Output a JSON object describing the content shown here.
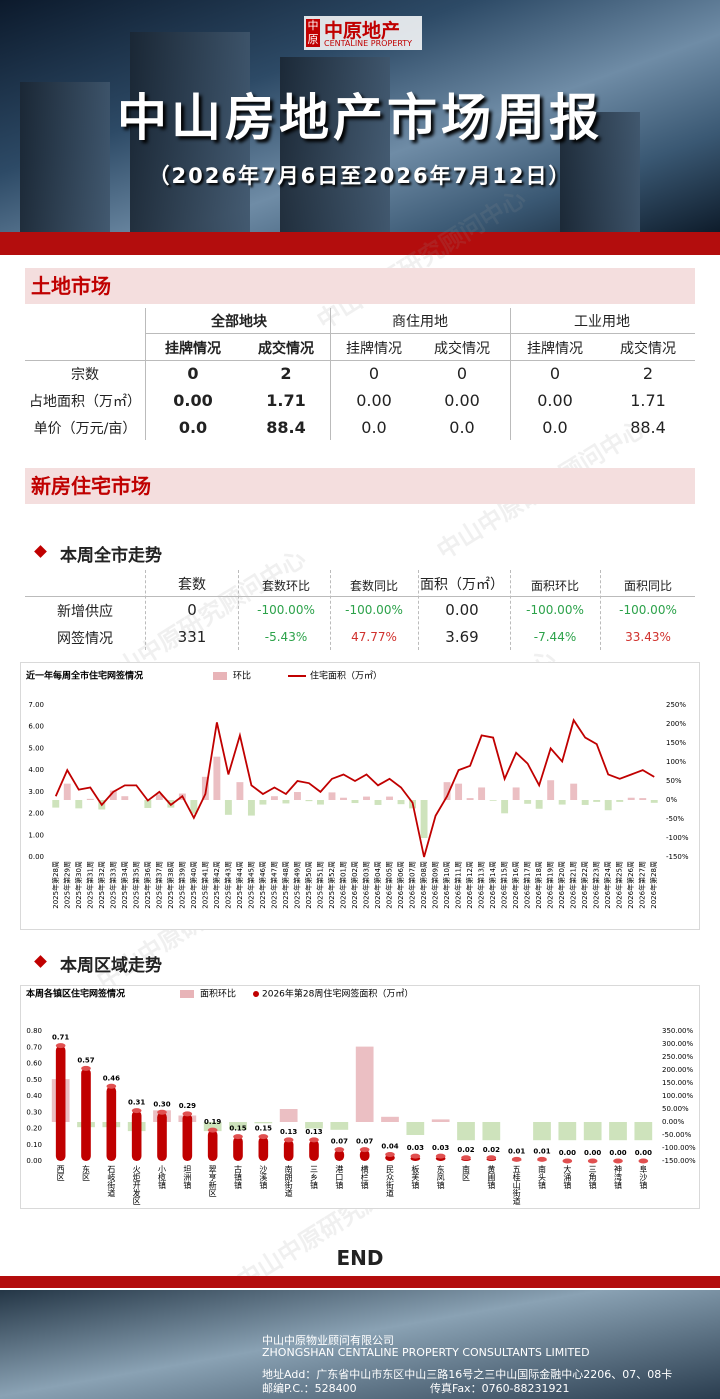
{
  "header": {
    "logo": "中原地产",
    "logo_en": "CENTALINE PROPERTY",
    "logo_mark": "中原",
    "title": "中山房地产市场周报",
    "subtitle": "（2026年7月6日至2026年7月12日）"
  },
  "watermark": "中山中原研究顾问中心",
  "land_market": {
    "title": "土地市场",
    "groups": [
      "全部地块",
      "商住用地",
      "工业用地"
    ],
    "subheaders": [
      "挂牌情况",
      "成交情况",
      "挂牌情况",
      "成交情况",
      "挂牌情况",
      "成交情况"
    ],
    "rows": [
      {
        "label": "宗数",
        "cells": [
          "0",
          "2",
          "0",
          "0",
          "0",
          "2"
        ]
      },
      {
        "label": "占地面积（万㎡）",
        "cells": [
          "0.00",
          "1.71",
          "0.00",
          "0.00",
          "0.00",
          "1.71"
        ]
      },
      {
        "label": "单价（万元/亩）",
        "cells": [
          "0.0",
          "88.4",
          "0.0",
          "0.0",
          "0.0",
          "88.4"
        ]
      }
    ]
  },
  "new_home": {
    "title": "新房住宅市场",
    "city_section": "本周全市走势",
    "district_section": "本周区域走势",
    "headers": [
      "套数",
      "套数环比",
      "套数同比",
      "面积（万㎡）",
      "面积环比",
      "面积同比"
    ],
    "rows": [
      {
        "label": "新增供应",
        "cells": [
          "0",
          "-100.00%",
          "-100.00%",
          "0.00",
          "-100.00%",
          "-100.00%"
        ]
      },
      {
        "label": "网签情况",
        "cells": [
          "331",
          "-5.43%",
          "47.77%",
          "3.69",
          "-7.44%",
          "33.43%"
        ]
      }
    ]
  },
  "chart_data": [
    {
      "type": "combo",
      "title": "近一年每周全市住宅网签情况",
      "categories": [
        "2025年第28周",
        "2025年第29周",
        "2025年第30周",
        "2025年第31周",
        "2025年第32周",
        "2025年第33周",
        "2025年第34周",
        "2025年第35周",
        "2025年第36周",
        "2025年第37周",
        "2025年第38周",
        "2025年第39周",
        "2025年第40周",
        "2025年第41周",
        "2025年第42周",
        "2025年第43周",
        "2025年第44周",
        "2025年第45周",
        "2025年第46周",
        "2025年第47周",
        "2025年第48周",
        "2025年第49周",
        "2025年第50周",
        "2025年第51周",
        "2025年第52周",
        "2026年第01周",
        "2026年第02周",
        "2026年第03周",
        "2026年第04周",
        "2026年第05周",
        "2026年第06周",
        "2026年第07周",
        "2026年第08周",
        "2026年第09周",
        "2026年第10周",
        "2026年第11周",
        "2026年第12周",
        "2026年第13周",
        "2026年第14周",
        "2026年第15周",
        "2026年第16周",
        "2026年第17周",
        "2026年第18周",
        "2026年第19周",
        "2026年第20周",
        "2026年第21周",
        "2026年第22周",
        "2026年第23周",
        "2026年第24周",
        "2026年第25周",
        "2026年第26周",
        "2026年第27周",
        "2026年第28周"
      ],
      "series": [
        {
          "name": "环比",
          "type": "bar",
          "axis": "y2",
          "color": "#e8b4b8",
          "negative_color": "#c5deb0",
          "values": [
            -20,
            43,
            -22,
            3,
            -25,
            25,
            10,
            0,
            -21,
            15,
            -20,
            17,
            -36,
            61,
            114,
            -39,
            47,
            -41,
            -12,
            10,
            -9,
            21,
            -3,
            -12,
            20,
            6,
            -8,
            9,
            -13,
            9,
            -11,
            -22,
            -100,
            null,
            47,
            43,
            5,
            33,
            -2,
            -35,
            33,
            -10,
            -23,
            52,
            -12,
            43,
            -13,
            -5,
            -27,
            -5,
            6,
            5,
            -7.44
          ]
        },
        {
          "name": "住宅面积（万㎡）",
          "type": "line",
          "color": "#c00000",
          "values": [
            2.8,
            4.0,
            3.1,
            3.2,
            2.4,
            3.0,
            3.3,
            3.3,
            2.6,
            3.0,
            2.4,
            2.8,
            1.8,
            2.9,
            6.2,
            3.8,
            5.6,
            3.3,
            2.9,
            3.2,
            2.9,
            3.5,
            3.4,
            3.0,
            3.6,
            3.8,
            3.5,
            3.8,
            3.3,
            3.6,
            3.2,
            2.5,
            0.0,
            1.9,
            2.8,
            4.0,
            4.2,
            5.6,
            5.5,
            3.6,
            4.8,
            4.3,
            3.3,
            5.0,
            4.4,
            6.3,
            5.5,
            5.2,
            3.8,
            3.6,
            3.8,
            4.0,
            3.69
          ]
        }
      ],
      "ylim": [
        0,
        7
      ],
      "yticks": [
        {
          "value": 0,
          "label": "0.00"
        },
        {
          "value": 1,
          "label": "1.00"
        },
        {
          "value": 2,
          "label": "2.00"
        },
        {
          "value": 3,
          "label": "3.00"
        },
        {
          "value": 4,
          "label": "4.00"
        },
        {
          "value": 5,
          "label": "5.00"
        },
        {
          "value": 6,
          "label": "6.00"
        },
        {
          "value": 7,
          "label": "7.00"
        }
      ],
      "y2lim": [
        -150,
        250
      ],
      "y2ticks": [
        {
          "value": -150,
          "label": "-150%"
        },
        {
          "value": -100,
          "label": "-100%"
        },
        {
          "value": -50,
          "label": "-50%"
        },
        {
          "value": 0,
          "label": "0%"
        },
        {
          "value": 50,
          "label": "50%"
        },
        {
          "value": 100,
          "label": "100%"
        },
        {
          "value": 150,
          "label": "150%"
        },
        {
          "value": 200,
          "label": "200%"
        },
        {
          "value": 250,
          "label": "250%"
        }
      ],
      "grid": false
    },
    {
      "type": "combo",
      "title": "本周各镇区住宅网签情况",
      "categories": [
        "西区",
        "东区",
        "石岐街道",
        "火炬开发区",
        "小榄镇",
        "坦洲镇",
        "翠亨新区",
        "古镇镇",
        "沙溪镇",
        "南朗街道",
        "三乡镇",
        "港口镇",
        "横栏镇",
        "民众街道",
        "板芙镇",
        "东凤镇",
        "南区",
        "黄圃镇",
        "五桂山街道",
        "南头镇",
        "大涌镇",
        "三角镇",
        "神湾镇",
        "阜沙镇"
      ],
      "series": [
        {
          "name": "面积环比",
          "type": "bar",
          "axis": "y2",
          "color": "#e8b4b8",
          "negative_color": "#c5deb0",
          "values": [
            165,
            -20,
            -20,
            -35,
            45,
            25,
            -35,
            -30,
            -5,
            50,
            -25,
            -30,
            290,
            20,
            -50,
            10,
            -70,
            -70,
            0,
            -70,
            -70,
            -70,
            -70,
            -70
          ]
        },
        {
          "name": "2026年第28周住宅网签面积（万㎡）",
          "type": "column",
          "color": "#c00000",
          "values": [
            0.71,
            0.57,
            0.46,
            0.31,
            0.3,
            0.29,
            0.19,
            0.15,
            0.15,
            0.13,
            0.13,
            0.07,
            0.07,
            0.04,
            0.03,
            0.03,
            0.02,
            0.02,
            0.01,
            0.01,
            0,
            0,
            0,
            0
          ],
          "value_labels": [
            "0.71",
            "0.57",
            "0.46",
            "0.31",
            "0.30",
            "0.29",
            "0.19",
            "0.15",
            "0.15",
            "0.13",
            "0.13",
            "0.07",
            "0.07",
            "0.04",
            "0.03",
            "0.03",
            "0.02",
            "0.02",
            "0.01",
            "0.01",
            "0.00",
            "0.00",
            "0.00",
            "0.00"
          ]
        }
      ],
      "ylim": [
        0,
        0.8
      ],
      "yticks": [
        {
          "value": 0,
          "label": "0.00"
        },
        {
          "value": 0.1,
          "label": "0.10"
        },
        {
          "value": 0.2,
          "label": "0.20"
        },
        {
          "value": 0.3,
          "label": "0.30"
        },
        {
          "value": 0.4,
          "label": "0.40"
        },
        {
          "value": 0.5,
          "label": "0.50"
        },
        {
          "value": 0.6,
          "label": "0.60"
        },
        {
          "value": 0.7,
          "label": "0.70"
        },
        {
          "value": 0.8,
          "label": "0.80"
        }
      ],
      "y2lim": [
        -150,
        350
      ],
      "y2ticks": [
        {
          "value": -150,
          "label": "-150.00%"
        },
        {
          "value": -100,
          "label": "-100.00%"
        },
        {
          "value": -50,
          "label": "-50.00%"
        },
        {
          "value": 0,
          "label": "0.00%"
        },
        {
          "value": 50,
          "label": "50.00%"
        },
        {
          "value": 100,
          "label": "100.00%"
        },
        {
          "value": 150,
          "label": "150.00%"
        },
        {
          "value": 200,
          "label": "200.00%"
        },
        {
          "value": 250,
          "label": "250.00%"
        },
        {
          "value": 300,
          "label": "300.00%"
        },
        {
          "value": 350,
          "label": "350.00%"
        }
      ],
      "grid": false
    }
  ],
  "end": "END",
  "footer": {
    "company": "中山中原物业顾问有限公司",
    "company_en": "ZHONGSHAN CENTALINE PROPERTY CONSULTANTS LIMITED",
    "address": "地址Add：广东省中山市东区中山三路16号之三中山国际金融中心2206、07、08卡",
    "postcode": "邮编P.C.：528400",
    "fax": "传真Fax：0760-88231921"
  }
}
